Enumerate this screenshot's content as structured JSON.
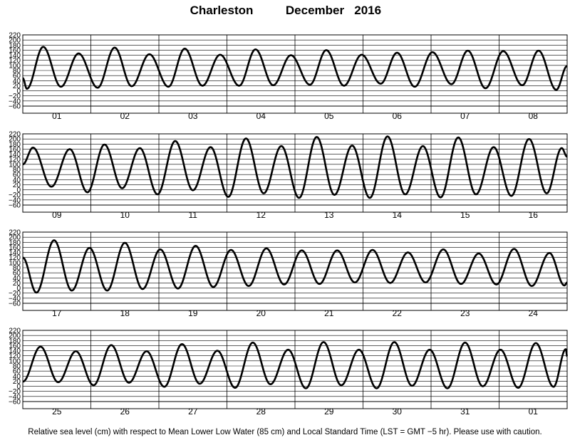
{
  "header": {
    "location": "Charleston",
    "period": "December   2016"
  },
  "footnote": "Relative sea level (cm) with respect to Mean Lower Low Water (85 cm) and Local Standard Time (LST = GMT −5 hr). Please use with caution.",
  "chart_data": {
    "type": "line",
    "title": "",
    "ylabel": "",
    "xlabel": "",
    "ylim": [
      -60,
      220
    ],
    "yticks": [
      -60,
      -40,
      -20,
      0,
      20,
      40,
      60,
      80,
      100,
      120,
      140,
      160,
      180,
      200,
      220
    ],
    "ytick_labels": [
      "−60",
      "−40",
      "−20",
      "0",
      "20",
      "40",
      "60",
      "80",
      "100",
      "120",
      "140",
      "160",
      "180",
      "200",
      "220"
    ],
    "grid": true,
    "legend": "none",
    "days_per_panel": 8,
    "panels": [
      {
        "day_labels": [
          "01",
          "02",
          "03",
          "04",
          "05",
          "06",
          "07",
          "08"
        ],
        "start_level": 50,
        "tides": [
          {
            "day": 1.06,
            "level": 8
          },
          {
            "day": 1.3,
            "level": 173
          },
          {
            "day": 1.56,
            "level": 16
          },
          {
            "day": 1.82,
            "level": 147
          },
          {
            "day": 2.1,
            "level": 12
          },
          {
            "day": 2.35,
            "level": 170
          },
          {
            "day": 2.6,
            "level": 18
          },
          {
            "day": 2.86,
            "level": 144
          },
          {
            "day": 3.14,
            "level": 16
          },
          {
            "day": 3.38,
            "level": 166
          },
          {
            "day": 3.64,
            "level": 20
          },
          {
            "day": 3.9,
            "level": 142
          },
          {
            "day": 4.18,
            "level": 20
          },
          {
            "day": 4.42,
            "level": 163
          },
          {
            "day": 4.68,
            "level": 22
          },
          {
            "day": 4.94,
            "level": 140
          },
          {
            "day": 5.22,
            "level": 24
          },
          {
            "day": 5.46,
            "level": 160
          },
          {
            "day": 5.72,
            "level": 20
          },
          {
            "day": 5.98,
            "level": 142
          },
          {
            "day": 6.26,
            "level": 28
          },
          {
            "day": 6.5,
            "level": 150
          },
          {
            "day": 6.76,
            "level": 16
          },
          {
            "day": 7.02,
            "level": 152
          },
          {
            "day": 7.3,
            "level": 26
          },
          {
            "day": 7.54,
            "level": 158
          },
          {
            "day": 7.8,
            "level": 10
          },
          {
            "day": 8.06,
            "level": 156
          },
          {
            "day": 8.34,
            "level": 22
          },
          {
            "day": 8.58,
            "level": 158
          },
          {
            "day": 8.84,
            "level": 4
          }
        ],
        "end_level": 98
      },
      {
        "day_labels": [
          "09",
          "10",
          "11",
          "12",
          "13",
          "14",
          "15",
          "16"
        ],
        "start_level": 100,
        "tides": [
          {
            "day": 9.15,
            "level": 166
          },
          {
            "day": 9.42,
            "level": 12
          },
          {
            "day": 9.69,
            "level": 160
          },
          {
            "day": 9.95,
            "level": -10
          },
          {
            "day": 10.2,
            "level": 178
          },
          {
            "day": 10.46,
            "level": 6
          },
          {
            "day": 10.72,
            "level": 164
          },
          {
            "day": 10.98,
            "level": -18
          },
          {
            "day": 11.24,
            "level": 192
          },
          {
            "day": 11.5,
            "level": -2
          },
          {
            "day": 11.76,
            "level": 168
          },
          {
            "day": 12.02,
            "level": -28
          },
          {
            "day": 12.28,
            "level": 202
          },
          {
            "day": 12.54,
            "level": -14
          },
          {
            "day": 12.8,
            "level": 172
          },
          {
            "day": 13.06,
            "level": -32
          },
          {
            "day": 13.32,
            "level": 208
          },
          {
            "day": 13.58,
            "level": -20
          },
          {
            "day": 13.84,
            "level": 174
          },
          {
            "day": 14.1,
            "level": -32
          },
          {
            "day": 14.36,
            "level": 210
          },
          {
            "day": 14.62,
            "level": -18
          },
          {
            "day": 14.88,
            "level": 172
          },
          {
            "day": 15.14,
            "level": -30
          },
          {
            "day": 15.4,
            "level": 206
          },
          {
            "day": 15.66,
            "level": -18
          },
          {
            "day": 15.92,
            "level": 168
          },
          {
            "day": 16.18,
            "level": -24
          },
          {
            "day": 16.44,
            "level": 200
          },
          {
            "day": 16.7,
            "level": -14
          },
          {
            "day": 16.92,
            "level": 164
          }
        ],
        "end_level": 130
      },
      {
        "day_labels": [
          "17",
          "18",
          "19",
          "20",
          "21",
          "22",
          "23",
          "24"
        ],
        "start_level": 120,
        "tides": [
          {
            "day": 17.2,
            "level": -18
          },
          {
            "day": 17.46,
            "level": 188
          },
          {
            "day": 17.72,
            "level": -10
          },
          {
            "day": 17.98,
            "level": 158
          },
          {
            "day": 18.24,
            "level": -10
          },
          {
            "day": 18.5,
            "level": 178
          },
          {
            "day": 18.76,
            "level": -4
          },
          {
            "day": 19.02,
            "level": 152
          },
          {
            "day": 19.28,
            "level": -2
          },
          {
            "day": 19.54,
            "level": 166
          },
          {
            "day": 19.8,
            "level": 4
          },
          {
            "day": 20.06,
            "level": 150
          },
          {
            "day": 20.32,
            "level": 8
          },
          {
            "day": 20.58,
            "level": 156
          },
          {
            "day": 20.84,
            "level": 14
          },
          {
            "day": 21.1,
            "level": 148
          },
          {
            "day": 21.36,
            "level": 16
          },
          {
            "day": 21.62,
            "level": 148
          },
          {
            "day": 21.88,
            "level": 22
          },
          {
            "day": 22.14,
            "level": 150
          },
          {
            "day": 22.4,
            "level": 20
          },
          {
            "day": 22.66,
            "level": 140
          },
          {
            "day": 22.92,
            "level": 22
          },
          {
            "day": 23.18,
            "level": 152
          },
          {
            "day": 23.44,
            "level": 16
          },
          {
            "day": 23.7,
            "level": 136
          },
          {
            "day": 23.96,
            "level": 14
          },
          {
            "day": 24.22,
            "level": 154
          },
          {
            "day": 24.48,
            "level": 8
          },
          {
            "day": 24.74,
            "level": 138
          },
          {
            "day": 24.96,
            "level": 10
          }
        ],
        "end_level": 22
      },
      {
        "day_labels": [
          "25",
          "26",
          "27",
          "28",
          "29",
          "30",
          "31",
          "01"
        ],
        "start_level": 18,
        "tides": [
          {
            "day": 25.26,
            "level": 156
          },
          {
            "day": 25.52,
            "level": 16
          },
          {
            "day": 25.78,
            "level": 138
          },
          {
            "day": 26.04,
            "level": 4
          },
          {
            "day": 26.3,
            "level": 162
          },
          {
            "day": 26.56,
            "level": 14
          },
          {
            "day": 26.82,
            "level": 138
          },
          {
            "day": 27.08,
            "level": -2
          },
          {
            "day": 27.34,
            "level": 166
          },
          {
            "day": 27.6,
            "level": 10
          },
          {
            "day": 27.86,
            "level": 140
          },
          {
            "day": 28.12,
            "level": -6
          },
          {
            "day": 28.38,
            "level": 172
          },
          {
            "day": 28.64,
            "level": 8
          },
          {
            "day": 28.9,
            "level": 144
          },
          {
            "day": 29.16,
            "level": -8
          },
          {
            "day": 29.42,
            "level": 174
          },
          {
            "day": 29.68,
            "level": 4
          },
          {
            "day": 29.94,
            "level": 144
          },
          {
            "day": 30.2,
            "level": -8
          },
          {
            "day": 30.46,
            "level": 174
          },
          {
            "day": 30.72,
            "level": 2
          },
          {
            "day": 30.98,
            "level": 144
          },
          {
            "day": 31.24,
            "level": -8
          },
          {
            "day": 31.5,
            "level": 172
          },
          {
            "day": 31.76,
            "level": 0
          },
          {
            "day": 32.02,
            "level": 144
          },
          {
            "day": 32.28,
            "level": -6
          },
          {
            "day": 32.54,
            "level": 170
          },
          {
            "day": 32.8,
            "level": -2
          },
          {
            "day": 32.98,
            "level": 146
          }
        ],
        "end_level": 118
      }
    ]
  }
}
